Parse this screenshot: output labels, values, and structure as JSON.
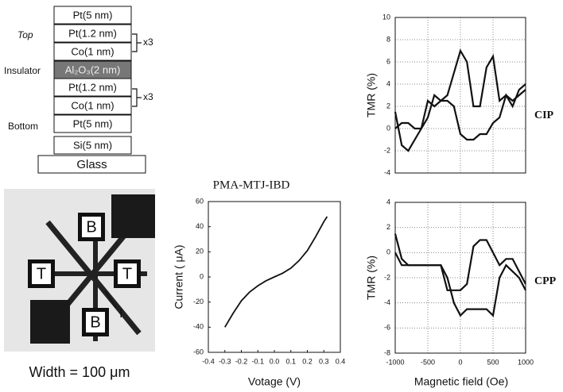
{
  "stack": {
    "layers": [
      "Pt(5 nm)",
      "Pt(1.2 nm)",
      "Co(1 nm)",
      "Al₂O₃(2 nm)",
      "Pt(1.2 nm)",
      "Co(1 nm)",
      "Pt(5 nm)",
      "Si(5 nm)",
      "Glass"
    ],
    "labels": [
      "Top",
      "Insulator",
      "Bottom"
    ],
    "repeats": [
      "x3",
      "x3"
    ]
  },
  "device": {
    "pads": [
      "B",
      "T",
      "T",
      "B"
    ],
    "pointer": "I",
    "caption": "Width = 100 μm"
  },
  "chart_data": [
    {
      "type": "line",
      "title": "PMA-MTJ-IBD",
      "x_label": "Votage (V)",
      "y_label": "Current ( μA)",
      "x": [
        -0.3,
        -0.25,
        -0.2,
        -0.15,
        -0.1,
        -0.05,
        0,
        0.05,
        0.1,
        0.15,
        0.2,
        0.25,
        0.3,
        0.32
      ],
      "values": [
        -40,
        -29,
        -19,
        -12,
        -7,
        -3,
        0,
        3,
        7,
        13,
        21,
        32,
        44,
        48
      ],
      "color": "#111111",
      "xlim": [
        -0.4,
        0.4
      ],
      "xticks": [
        -0.4,
        -0.3,
        -0.2,
        -0.1,
        {
          "value": 0,
          "label": "0.0"
        },
        0.1,
        0.2,
        0.3,
        0.4
      ],
      "ylim": [
        -60,
        60
      ],
      "yticks": [
        -60,
        -40,
        -20,
        0,
        20,
        40,
        60
      ],
      "grid": false,
      "show_xtick_labels": true
    },
    {
      "type": "line",
      "y_label": "TMR (%)",
      "annotation": "CIP",
      "x": [
        -1000,
        -900,
        -800,
        -700,
        -600,
        -500,
        -400,
        -300,
        -200,
        -100,
        0,
        100,
        200,
        300,
        400,
        500,
        600,
        700,
        800,
        900,
        1000
      ],
      "series": [
        {
          "color": "#111111",
          "values": [
            1.5,
            -1.5,
            -2,
            -1,
            0,
            2.5,
            2,
            2.5,
            3,
            5,
            7,
            6,
            2,
            2,
            5.5,
            6.5,
            2.5,
            3,
            2.5,
            3,
            3.5
          ]
        },
        {
          "color": "#111111",
          "values": [
            0,
            0.5,
            0.5,
            0,
            0,
            1,
            3,
            2.5,
            2.5,
            2,
            -0.5,
            -1,
            -1,
            -0.5,
            -0.5,
            0.5,
            1,
            3,
            2,
            3.5,
            4
          ]
        }
      ],
      "xlim": [
        -1000,
        1000
      ],
      "xticks": [
        -1000,
        -500,
        0,
        500,
        1000
      ],
      "ylim": [
        -4,
        10
      ],
      "yticks": [
        -4,
        -2,
        0,
        2,
        4,
        6,
        8,
        10
      ],
      "grid": true,
      "show_xtick_labels": false
    },
    {
      "type": "line",
      "y_label": "TMR (%)",
      "x_label": "Magnetic field (Oe)",
      "annotation": "CPP",
      "x": [
        -1000,
        -900,
        -800,
        -700,
        -600,
        -500,
        -400,
        -300,
        -200,
        -100,
        0,
        100,
        200,
        300,
        400,
        500,
        600,
        700,
        800,
        900,
        1000
      ],
      "series": [
        {
          "color": "#111111",
          "values": [
            1.5,
            -0.5,
            -1,
            -1,
            -1,
            -1,
            -1,
            -1,
            -3,
            -3,
            -3,
            -2.5,
            0.5,
            1,
            1,
            0,
            -1,
            -0.5,
            -0.5,
            -1.5,
            -2.5
          ]
        },
        {
          "color": "#111111",
          "values": [
            0,
            -1,
            -1,
            -1,
            -1,
            -1,
            -1,
            -1,
            -2,
            -4,
            -5,
            -4.5,
            -4.5,
            -4.5,
            -4.5,
            -5,
            -2,
            -1,
            -1.5,
            -2,
            -3
          ]
        }
      ],
      "xlim": [
        -1000,
        1000
      ],
      "xticks": [
        -1000,
        -500,
        0,
        500,
        1000
      ],
      "ylim": [
        -8,
        4
      ],
      "yticks": [
        -8,
        -6,
        -4,
        -2,
        0,
        2,
        4
      ],
      "grid": true,
      "show_xtick_labels": true
    }
  ]
}
